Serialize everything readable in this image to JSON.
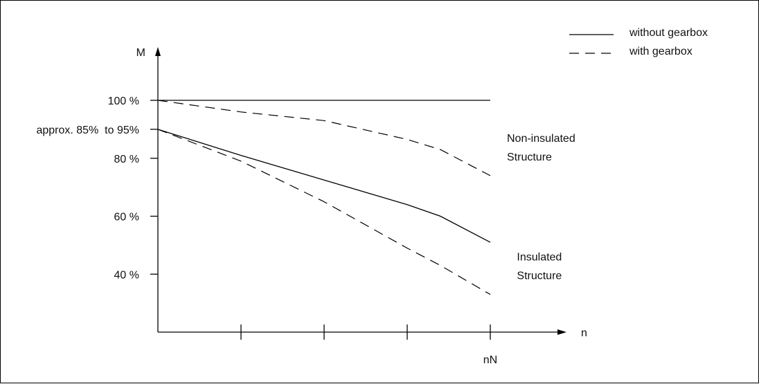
{
  "chart_data": {
    "type": "line",
    "xlabel": "n",
    "ylabel": "M",
    "x_tick_labels": [
      "",
      "",
      "",
      "nN"
    ],
    "x": [
      0,
      0.25,
      0.5,
      0.75,
      0.85,
      1
    ],
    "xlim": [
      0,
      1.2
    ],
    "ylim": [
      20,
      100
    ],
    "y_tick_labels": [
      {
        "value": 100,
        "label": "100 %"
      },
      {
        "value": 90,
        "label": "approx. 85%  to 95%"
      },
      {
        "value": 80,
        "label": "80 %"
      },
      {
        "value": 60,
        "label": "60 %"
      },
      {
        "value": 40,
        "label": "40 %"
      }
    ],
    "series": [
      {
        "name": "without gearbox",
        "style": "solid",
        "group": "Non-insulated Structure",
        "values": [
          100,
          100,
          100,
          100,
          100,
          100
        ]
      },
      {
        "name": "with gearbox",
        "style": "dashed",
        "group": "Non-insulated Structure",
        "values": [
          100,
          96,
          93,
          86.5,
          83,
          74
        ]
      },
      {
        "name": "without gearbox",
        "style": "solid",
        "group": "Insulated Structure",
        "values": [
          90,
          81,
          72.5,
          64,
          60,
          51
        ]
      },
      {
        "name": "with gearbox",
        "style": "dashed",
        "group": "Insulated Structure",
        "values": [
          90,
          79,
          65,
          49,
          43,
          33
        ]
      }
    ],
    "annotations": [
      {
        "lines": [
          "Non-insulated",
          "Structure"
        ],
        "x": 1.05,
        "y": 80
      },
      {
        "lines": [
          "Insulated",
          "Structure"
        ],
        "x": 1.08,
        "y": 39
      }
    ],
    "legend": {
      "position": "top-right",
      "items": [
        {
          "label": "without gearbox",
          "style": "solid"
        },
        {
          "label": "with gearbox",
          "style": "dashed"
        }
      ]
    },
    "grid": false
  }
}
